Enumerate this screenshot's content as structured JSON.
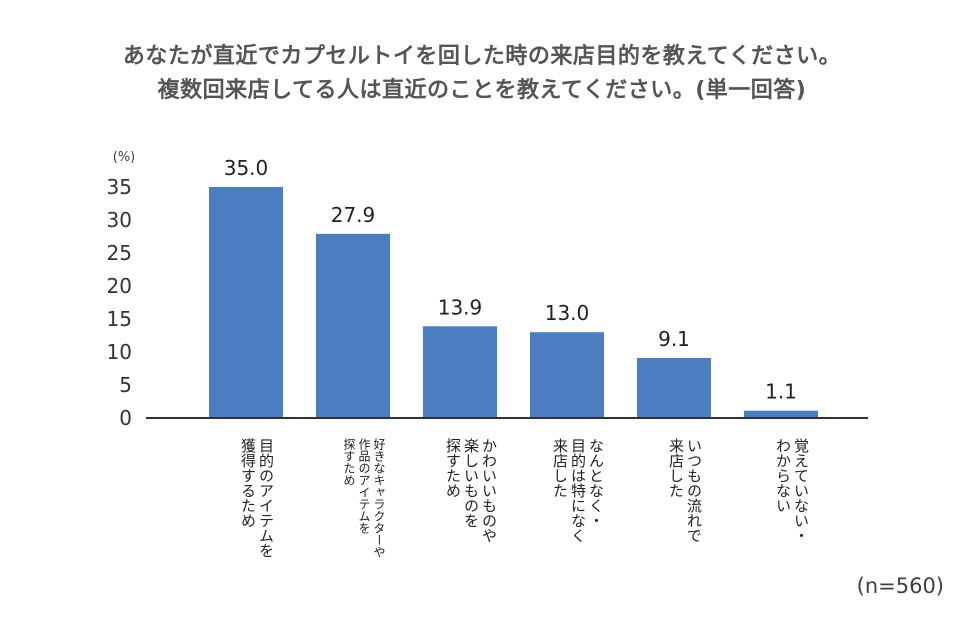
{
  "title_lines": [
    "あなたが直近でカプセルトイを回した時の来店目的を教えてください。",
    "複数回来店してる人は直近のことを教えてください。(単一回答)"
  ],
  "sample_note": "(n=560)",
  "chart_data": {
    "type": "bar",
    "title": "あなたが直近でカプセルトイを回した時の来店目的を教えてください。 複数回来店してる人は直近のことを教えてください。(単一回答)",
    "y_unit_label": "(%)",
    "ylim": [
      0,
      35
    ],
    "yticks": [
      0,
      5,
      10,
      15,
      20,
      25,
      30,
      35
    ],
    "grid": false,
    "bar_color": "#4A7EC0",
    "categories": [
      "目的のアイテムを獲得するため",
      "好きなキャラクターや作品のアイテムを探すため",
      "かわいいものや楽しいものを探すため",
      "なんとなく・目的は特になく来店した",
      "いつもの流れで来店した",
      "覚えていない・わからない"
    ],
    "category_label_lines": [
      [
        "目的のアイテムを",
        "獲得するため"
      ],
      [
        "好きなキャラクターや",
        "作品のアイテムを",
        "探すため"
      ],
      [
        "かわいいものや",
        "楽しいものを",
        "探すため"
      ],
      [
        "なんとなく・",
        "目的は特になく",
        "来店した"
      ],
      [
        "いつもの流れで",
        "来店した"
      ],
      [
        "覚えていない・",
        "わからない"
      ]
    ],
    "values": [
      35.0,
      27.9,
      13.9,
      13.0,
      9.1,
      1.1
    ],
    "value_labels": [
      "35.0",
      "27.9",
      "13.9",
      "13.0",
      "9.1",
      "1.1"
    ]
  }
}
